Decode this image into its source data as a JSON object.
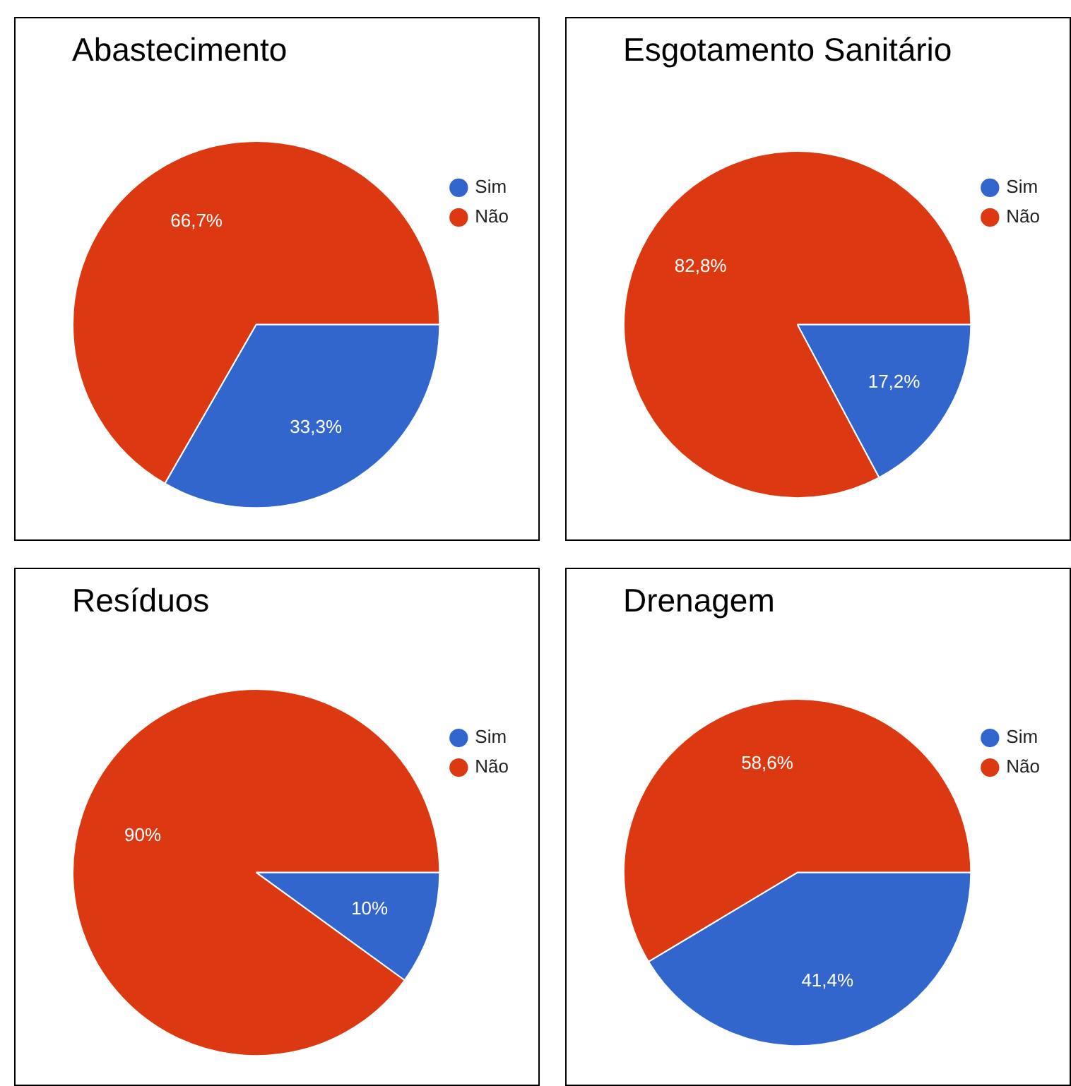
{
  "chart_data": [
    {
      "type": "pie",
      "title": "Abastecimento",
      "categories": [
        "Sim",
        "Não"
      ],
      "values": [
        33.3,
        66.7
      ],
      "colors": [
        "#3366cc",
        "#dc3912"
      ],
      "value_labels": [
        "33,3%",
        "66,7%"
      ],
      "legend": "right"
    },
    {
      "type": "pie",
      "title": "Esgotamento Sanitário",
      "categories": [
        "Sim",
        "Não"
      ],
      "values": [
        17.2,
        82.8
      ],
      "colors": [
        "#3366cc",
        "#dc3912"
      ],
      "value_labels": [
        "17,2%",
        "82,8%"
      ],
      "legend": "right"
    },
    {
      "type": "pie",
      "title": "Resíduos",
      "categories": [
        "Sim",
        "Não"
      ],
      "values": [
        10,
        90
      ],
      "colors": [
        "#3366cc",
        "#dc3912"
      ],
      "value_labels": [
        "10%",
        "90%"
      ],
      "legend": "right"
    },
    {
      "type": "pie",
      "title": "Drenagem",
      "categories": [
        "Sim",
        "Não"
      ],
      "values": [
        41.4,
        58.6
      ],
      "colors": [
        "#3366cc",
        "#dc3912"
      ],
      "value_labels": [
        "41,4%",
        "58,6%"
      ],
      "legend": "right"
    }
  ]
}
